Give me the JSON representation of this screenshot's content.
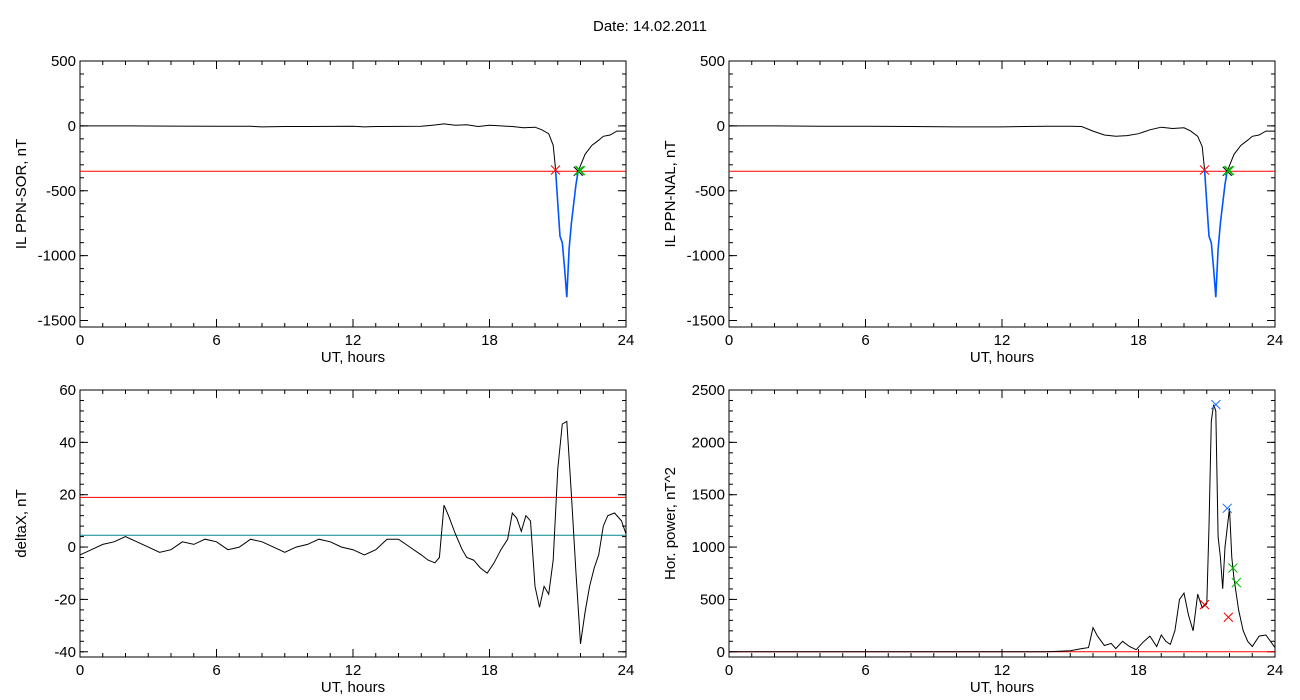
{
  "title": "Date:  14.02.2011",
  "chart_data": [
    {
      "type": "line",
      "ylabel": "IL PPN-SOR, nT",
      "xlabel": "UT, hours",
      "xlim": [
        0,
        24
      ],
      "ylim": [
        -1550,
        500
      ],
      "xticks": [
        0,
        6,
        12,
        18,
        24
      ],
      "yticks": [
        500,
        0,
        -500,
        -1000,
        -1500
      ],
      "threshold_lines": [
        {
          "y": -350,
          "color": "#ff0000"
        }
      ],
      "series": [
        {
          "color": "#000000",
          "x": [
            0,
            2,
            4,
            6,
            7.5,
            8,
            9,
            10,
            11,
            12,
            12.5,
            13,
            14,
            15,
            15.5,
            16,
            16.5,
            17,
            17.5,
            18,
            18.5,
            19,
            19.5,
            20,
            20.3,
            20.6,
            20.8,
            20.9
          ],
          "y": [
            0,
            0,
            -2,
            -3,
            -3,
            -8,
            -5,
            -5,
            -4,
            -3,
            -8,
            -5,
            -4,
            -3,
            5,
            15,
            5,
            8,
            -5,
            5,
            0,
            -5,
            -15,
            -10,
            -30,
            -60,
            -150,
            -330
          ]
        },
        {
          "color": "#0055ff",
          "x": [
            20.9,
            21.0,
            21.1,
            21.2,
            21.3,
            21.4,
            21.5,
            21.6,
            21.7,
            21.8,
            21.9
          ],
          "y": [
            -330,
            -600,
            -850,
            -900,
            -1100,
            -1320,
            -950,
            -750,
            -600,
            -450,
            -350
          ]
        },
        {
          "color": "#000000",
          "x": [
            21.9,
            22.2,
            22.5,
            22.8,
            23.0,
            23.3,
            23.6,
            24
          ],
          "y": [
            -350,
            -220,
            -150,
            -110,
            -80,
            -70,
            -40,
            -40
          ]
        }
      ],
      "markers": [
        {
          "x": 20.9,
          "y": -340,
          "color": "#ff0000"
        },
        {
          "x": 21.9,
          "y": -350,
          "color": "#000000"
        },
        {
          "x": 21.95,
          "y": -345,
          "color": "#00bb00"
        },
        {
          "x": 22.0,
          "y": -345,
          "color": "#00bb00"
        }
      ]
    },
    {
      "type": "line",
      "ylabel": "IL PPN-NAL, nT",
      "xlabel": "UT, hours",
      "xlim": [
        0,
        24
      ],
      "ylim": [
        -1550,
        500
      ],
      "xticks": [
        0,
        6,
        12,
        18,
        24
      ],
      "yticks": [
        500,
        0,
        -500,
        -1000,
        -1500
      ],
      "threshold_lines": [
        {
          "y": -350,
          "color": "#ff0000"
        }
      ],
      "series": [
        {
          "color": "#000000",
          "x": [
            0,
            2,
            4,
            6,
            8,
            10,
            12,
            13,
            14,
            15,
            15.5,
            16,
            16.5,
            17,
            17.5,
            18,
            18.5,
            19,
            19.5,
            20,
            20.3,
            20.6,
            20.8,
            20.9
          ],
          "y": [
            0,
            0,
            -3,
            -3,
            -5,
            -8,
            -8,
            -5,
            -3,
            -3,
            -5,
            -40,
            -70,
            -80,
            -75,
            -60,
            -30,
            -10,
            -20,
            -15,
            -40,
            -80,
            -160,
            -330
          ]
        },
        {
          "color": "#0055ff",
          "x": [
            20.9,
            21.0,
            21.1,
            21.2,
            21.3,
            21.4,
            21.5,
            21.6,
            21.7,
            21.8,
            21.9
          ],
          "y": [
            -330,
            -600,
            -850,
            -900,
            -1100,
            -1320,
            -950,
            -750,
            -600,
            -450,
            -350
          ]
        },
        {
          "color": "#000000",
          "x": [
            21.9,
            22.2,
            22.5,
            22.8,
            23.0,
            23.3,
            23.6,
            24
          ],
          "y": [
            -350,
            -220,
            -150,
            -110,
            -80,
            -70,
            -40,
            -40
          ]
        }
      ],
      "markers": [
        {
          "x": 20.9,
          "y": -340,
          "color": "#ff0000"
        },
        {
          "x": 21.9,
          "y": -350,
          "color": "#000000"
        },
        {
          "x": 21.95,
          "y": -345,
          "color": "#00bb00"
        },
        {
          "x": 22.0,
          "y": -345,
          "color": "#00bb00"
        }
      ]
    },
    {
      "type": "line",
      "ylabel": "deltaX, nT",
      "xlabel": "UT, hours",
      "xlim": [
        0,
        24
      ],
      "ylim": [
        -42,
        60
      ],
      "xticks": [
        0,
        6,
        12,
        18,
        24
      ],
      "yticks": [
        60,
        40,
        20,
        0,
        -20,
        -40
      ],
      "threshold_lines": [
        {
          "y": 19,
          "color": "#ff0000"
        },
        {
          "y": 4.5,
          "color": "#008b8b"
        }
      ],
      "series": [
        {
          "color": "#000000",
          "x": [
            0,
            0.5,
            1,
            1.5,
            2,
            2.5,
            3,
            3.5,
            4,
            4.5,
            5,
            5.5,
            6,
            6.5,
            7,
            7.5,
            8,
            8.5,
            9,
            9.5,
            10,
            10.5,
            11,
            11.5,
            12,
            12.5,
            13,
            13.5,
            14,
            14.5,
            15,
            15.3,
            15.6,
            15.8,
            16,
            16.2,
            16.5,
            16.8,
            17,
            17.3,
            17.6,
            17.9,
            18.2,
            18.5,
            18.8,
            19,
            19.2,
            19.4,
            19.6,
            19.8,
            20,
            20.2,
            20.4,
            20.6,
            20.8,
            21,
            21.2,
            21.4,
            21.6,
            21.8,
            22,
            22.2,
            22.4,
            22.6,
            22.8,
            23,
            23.2,
            23.5,
            23.8,
            24
          ],
          "y": [
            -3,
            -1,
            1,
            2,
            4,
            2,
            0,
            -2,
            -1,
            2,
            1,
            3,
            2,
            -1,
            0,
            3,
            2,
            0,
            -2,
            0,
            1,
            3,
            2,
            0,
            -1,
            -3,
            -1,
            3,
            3,
            0,
            -3,
            -5,
            -6,
            -4,
            16,
            12,
            5,
            -1,
            -4,
            -5,
            -8,
            -10,
            -6,
            -1,
            3,
            13,
            11,
            6,
            12,
            10,
            -15,
            -23,
            -15,
            -18,
            -5,
            30,
            47,
            48,
            20,
            -10,
            -37,
            -25,
            -15,
            -8,
            -3,
            8,
            12,
            13,
            10,
            5
          ]
        }
      ],
      "markers": []
    },
    {
      "type": "line",
      "ylabel": "Hor. power, nT^2",
      "xlabel": "UT, hours",
      "xlim": [
        0,
        24
      ],
      "ylim": [
        -50,
        2500
      ],
      "xticks": [
        0,
        6,
        12,
        18,
        24
      ],
      "yticks": [
        2500,
        2000,
        1500,
        1000,
        500,
        0
      ],
      "threshold_lines": [
        {
          "y": 0,
          "color": "#ff0000"
        }
      ],
      "series": [
        {
          "color": "#000000",
          "x": [
            0,
            2,
            4,
            6,
            8,
            10,
            12,
            13,
            14,
            15,
            15.5,
            15.8,
            16,
            16.2,
            16.5,
            16.8,
            17,
            17.3,
            17.6,
            17.9,
            18.2,
            18.5,
            18.8,
            19.0,
            19.2,
            19.4,
            19.6,
            19.8,
            20.0,
            20.2,
            20.4,
            20.6,
            20.8,
            21.0,
            21.1,
            21.2,
            21.3,
            21.4,
            21.5,
            21.6,
            21.7,
            21.8,
            22.0,
            22.1,
            22.2,
            22.4,
            22.6,
            22.8,
            23.0,
            23.3,
            23.6,
            24
          ],
          "y": [
            0,
            0,
            0,
            0,
            0,
            0,
            0,
            0,
            0,
            10,
            30,
            40,
            230,
            150,
            60,
            80,
            30,
            100,
            50,
            20,
            90,
            150,
            50,
            160,
            100,
            70,
            200,
            500,
            560,
            350,
            200,
            550,
            420,
            460,
            1200,
            2200,
            2360,
            2300,
            1100,
            900,
            600,
            1000,
            1370,
            900,
            700,
            400,
            200,
            100,
            50,
            150,
            160,
            40
          ]
        }
      ],
      "markers": [
        {
          "x": 20.9,
          "y": 450,
          "color": "#ff0000"
        },
        {
          "x": 21.4,
          "y": 2360,
          "color": "#1e6fff"
        },
        {
          "x": 21.9,
          "y": 1370,
          "color": "#1e6fff"
        },
        {
          "x": 21.95,
          "y": 330,
          "color": "#ff0000"
        },
        {
          "x": 22.15,
          "y": 800,
          "color": "#00bb00"
        },
        {
          "x": 22.3,
          "y": 660,
          "color": "#00bb00"
        }
      ]
    }
  ]
}
